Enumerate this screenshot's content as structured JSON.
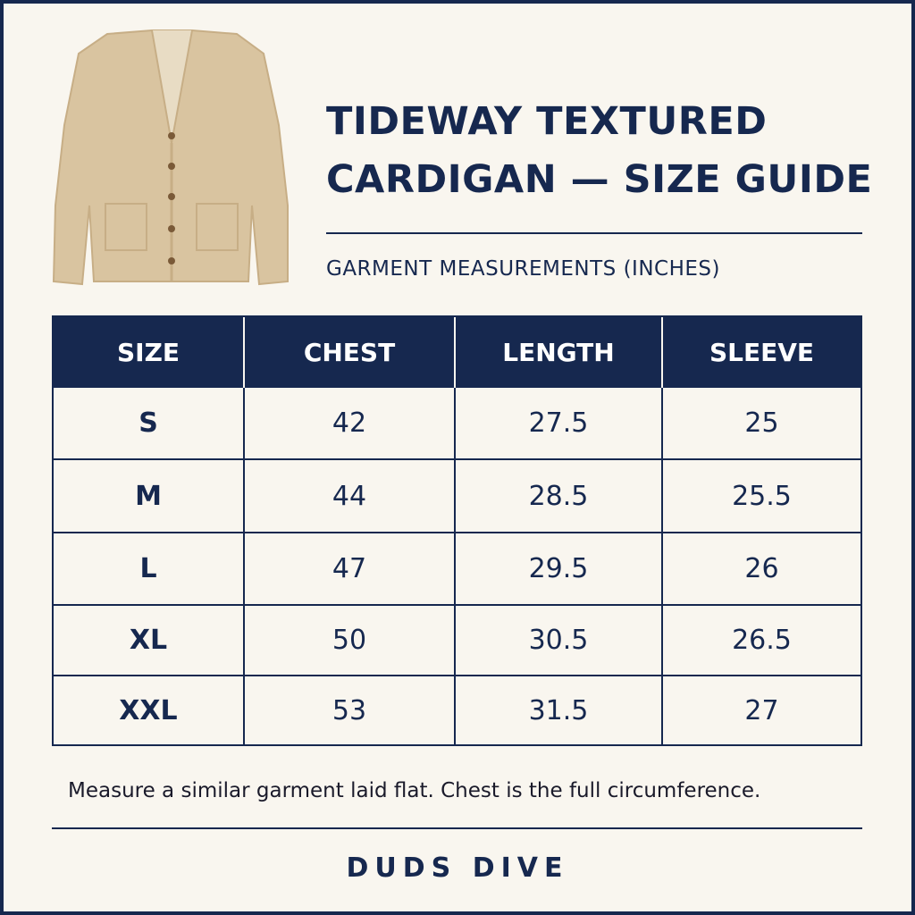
{
  "header": {
    "title_lines": [
      "TIDEWAY TEXTURED",
      "CARDIGAN — SIZE GUIDE"
    ],
    "subtitle": "GARMENT MEASUREMENTS (INCHES)"
  },
  "table": {
    "columns": [
      "SIZE",
      "CHEST",
      "LENGTH",
      "SLEEVE"
    ],
    "rows": [
      [
        "S",
        42,
        27.5,
        25
      ],
      [
        "M",
        44,
        28.5,
        25.5
      ],
      [
        "L",
        47,
        29.5,
        26
      ],
      [
        "XL",
        50,
        30.5,
        26.5
      ],
      [
        "XXL",
        53,
        31.5,
        27
      ]
    ]
  },
  "note": "Measure a similar garment laid flat. Chest is the full circumference.",
  "brand": "DUDS DIVE"
}
